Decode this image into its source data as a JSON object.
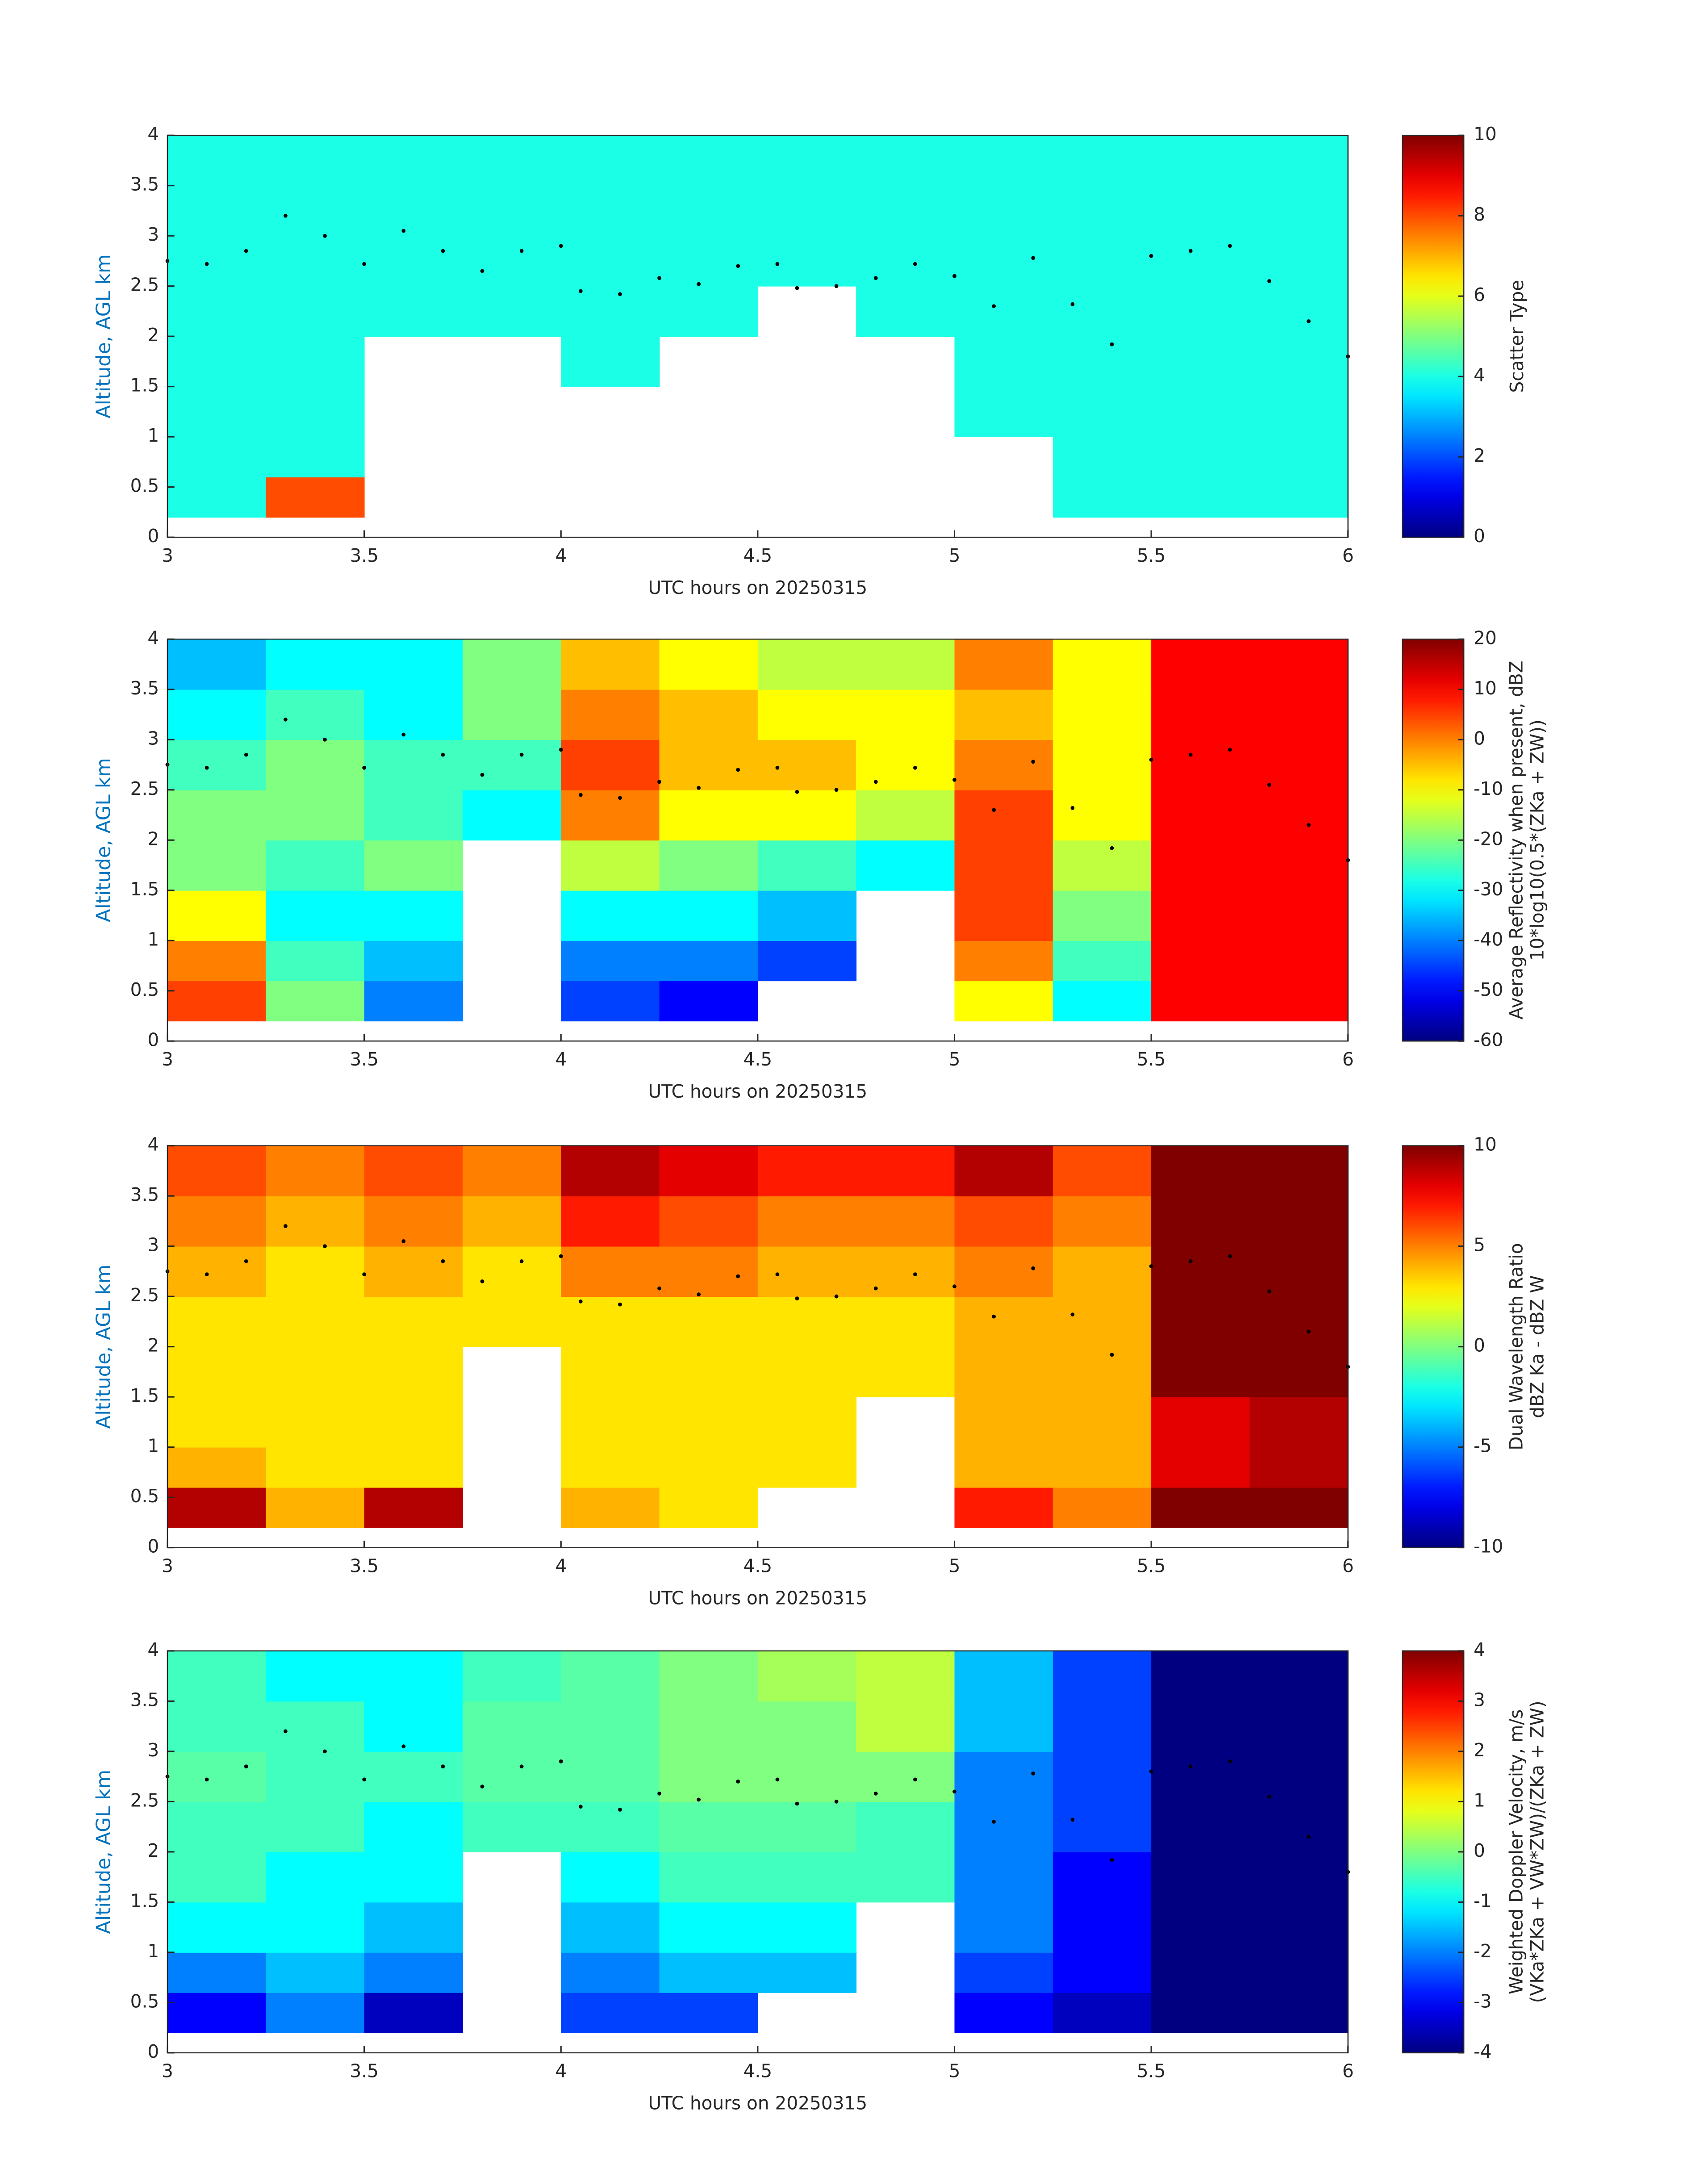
{
  "chart_data": [
    {
      "type": "heatmap",
      "xlabel": "UTC hours on 20250315",
      "ylabel": "Altitude, AGL km",
      "xlim": [
        3,
        6
      ],
      "xticks": [
        3,
        3.5,
        4,
        4.5,
        5,
        5.5,
        6
      ],
      "ylim": [
        0,
        4
      ],
      "yticks": [
        0,
        0.5,
        1,
        1.5,
        2,
        2.5,
        3,
        3.5,
        4
      ],
      "colormap": "jet",
      "clim": [
        0,
        10
      ],
      "cticks": [
        0,
        2,
        4,
        6,
        8,
        10
      ],
      "colorbar_label": [
        "Scatter Type"
      ],
      "xbins": [
        3,
        3.25,
        3.5,
        3.75,
        4,
        4.25,
        4.5,
        4.75,
        5,
        5.25,
        5.5,
        5.75,
        6
      ],
      "ybins": [
        0.2,
        0.6,
        1,
        1.5,
        2,
        2.5,
        3,
        3.5,
        4
      ],
      "z": [
        [
          4,
          8,
          null,
          null,
          null,
          null,
          null,
          null,
          null,
          4,
          4,
          4
        ],
        [
          4,
          4,
          null,
          null,
          null,
          null,
          null,
          null,
          null,
          4,
          4,
          4
        ],
        [
          4,
          4,
          null,
          null,
          null,
          null,
          null,
          null,
          4,
          4,
          4,
          4
        ],
        [
          4,
          4,
          null,
          null,
          4,
          null,
          null,
          null,
          4,
          4,
          4,
          4
        ],
        [
          4,
          4,
          4,
          4,
          4,
          4,
          null,
          4,
          4,
          4,
          4,
          4
        ],
        [
          4,
          4,
          4,
          4,
          4,
          4,
          4,
          4,
          4,
          4,
          4,
          4
        ],
        [
          4,
          4,
          4,
          4,
          4,
          4,
          4,
          4,
          4,
          4,
          4,
          4
        ],
        [
          4,
          4,
          4,
          4,
          4,
          4,
          4,
          4,
          4,
          4,
          4,
          4
        ]
      ],
      "overlay": {
        "color": "#000000",
        "x": [
          3,
          3.1,
          3.2,
          3.3,
          3.4,
          3.5,
          3.6,
          3.7,
          3.8,
          3.9,
          4,
          4.05,
          4.15,
          4.25,
          4.35,
          4.45,
          4.55,
          4.6,
          4.7,
          4.8,
          4.9,
          5,
          5.1,
          5.2,
          5.3,
          5.4,
          5.5,
          5.6,
          5.7,
          5.8,
          5.9,
          6
        ],
        "y": [
          2.75,
          2.72,
          2.85,
          3.2,
          3,
          2.72,
          3.05,
          2.85,
          2.65,
          2.85,
          2.9,
          2.45,
          2.42,
          2.58,
          2.52,
          2.7,
          2.72,
          2.48,
          2.5,
          2.58,
          2.72,
          2.6,
          2.3,
          2.78,
          2.32,
          1.92,
          2.8,
          2.85,
          2.9,
          2.55,
          2.15,
          1.8
        ]
      }
    },
    {
      "type": "heatmap",
      "xlabel": "UTC hours on 20250315",
      "ylabel": "Altitude, AGL km",
      "xlim": [
        3,
        6
      ],
      "xticks": [
        3,
        3.5,
        4,
        4.5,
        5,
        5.5,
        6
      ],
      "ylim": [
        0,
        4
      ],
      "yticks": [
        0,
        0.5,
        1,
        1.5,
        2,
        2.5,
        3,
        3.5,
        4
      ],
      "colormap": "jet",
      "clim": [
        -60,
        20
      ],
      "cticks": [
        -60,
        -50,
        -40,
        -30,
        -20,
        -10,
        0,
        10,
        20
      ],
      "colorbar_label": [
        "Average Reflectivity when present, dBZ",
        "10*log10(0.5*(ZKa + ZW))"
      ],
      "xbins": [
        3,
        3.25,
        3.5,
        3.75,
        4,
        4.25,
        4.5,
        4.75,
        5,
        5.25,
        5.5,
        5.75,
        6
      ],
      "ybins": [
        0.2,
        0.6,
        1,
        1.5,
        2,
        2.5,
        3,
        3.5,
        4
      ],
      "z": [
        [
          5,
          -20,
          -40,
          null,
          -45,
          -50,
          null,
          null,
          -10,
          -30,
          10,
          10
        ],
        [
          0,
          -25,
          -35,
          null,
          -40,
          -40,
          -45,
          null,
          0,
          -25,
          10,
          10
        ],
        [
          -10,
          -30,
          -30,
          null,
          -30,
          -30,
          -35,
          null,
          5,
          -20,
          10,
          10
        ],
        [
          -20,
          -25,
          -20,
          null,
          -15,
          -20,
          -25,
          -30,
          5,
          -15,
          10,
          10
        ],
        [
          -20,
          -20,
          -25,
          -30,
          0,
          -10,
          -10,
          -15,
          5,
          -10,
          10,
          10
        ],
        [
          -25,
          -20,
          -25,
          -25,
          5,
          -5,
          -5,
          -10,
          0,
          -10,
          10,
          10
        ],
        [
          -30,
          -25,
          -30,
          -20,
          0,
          -5,
          -10,
          -10,
          -5,
          -10,
          10,
          10
        ],
        [
          -35,
          -30,
          -30,
          -20,
          -5,
          -10,
          -15,
          -15,
          0,
          -10,
          10,
          10
        ]
      ],
      "overlay": {
        "color": "#000000",
        "x": [
          3,
          3.1,
          3.2,
          3.3,
          3.4,
          3.5,
          3.6,
          3.7,
          3.8,
          3.9,
          4,
          4.05,
          4.15,
          4.25,
          4.35,
          4.45,
          4.55,
          4.6,
          4.7,
          4.8,
          4.9,
          5,
          5.1,
          5.2,
          5.3,
          5.4,
          5.5,
          5.6,
          5.7,
          5.8,
          5.9,
          6
        ],
        "y": [
          2.75,
          2.72,
          2.85,
          3.2,
          3,
          2.72,
          3.05,
          2.85,
          2.65,
          2.85,
          2.9,
          2.45,
          2.42,
          2.58,
          2.52,
          2.7,
          2.72,
          2.48,
          2.5,
          2.58,
          2.72,
          2.6,
          2.3,
          2.78,
          2.32,
          1.92,
          2.8,
          2.85,
          2.9,
          2.55,
          2.15,
          1.8
        ]
      }
    },
    {
      "type": "heatmap",
      "xlabel": "UTC hours on 20250315",
      "ylabel": "Altitude, AGL km",
      "xlim": [
        3,
        6
      ],
      "xticks": [
        3,
        3.5,
        4,
        4.5,
        5,
        5.5,
        6
      ],
      "ylim": [
        0,
        4
      ],
      "yticks": [
        0,
        0.5,
        1,
        1.5,
        2,
        2.5,
        3,
        3.5,
        4
      ],
      "colormap": "jet",
      "clim": [
        -10,
        10
      ],
      "cticks": [
        -10,
        -5,
        0,
        5,
        10
      ],
      "colorbar_label": [
        "Dual Wavelength Ratio",
        "dBZ Ka - dBZ W"
      ],
      "xbins": [
        3,
        3.25,
        3.5,
        3.75,
        4,
        4.25,
        4.5,
        4.75,
        5,
        5.25,
        5.5,
        5.75,
        6
      ],
      "ybins": [
        0.2,
        0.6,
        1,
        1.5,
        2,
        2.5,
        3,
        3.5,
        4
      ],
      "z": [
        [
          9,
          4,
          9,
          null,
          4,
          3,
          null,
          null,
          7,
          5,
          10,
          10
        ],
        [
          4,
          3,
          3,
          null,
          3,
          3,
          3,
          null,
          4,
          4,
          8,
          9
        ],
        [
          3,
          3,
          3,
          null,
          3,
          3,
          3,
          null,
          4,
          4,
          8,
          9
        ],
        [
          3,
          3,
          3,
          null,
          3,
          3,
          3,
          3,
          4,
          4,
          10,
          10
        ],
        [
          3,
          3,
          3,
          3,
          3,
          3,
          3,
          3,
          4,
          4,
          10,
          10
        ],
        [
          4,
          3,
          4,
          3,
          5,
          5,
          4,
          4,
          5,
          4,
          10,
          10
        ],
        [
          5,
          4,
          5,
          4,
          7,
          6,
          5,
          5,
          6,
          5,
          10,
          10
        ],
        [
          6,
          5,
          6,
          5,
          9,
          8,
          7,
          7,
          9,
          6,
          10,
          10
        ]
      ],
      "overlay": {
        "color": "#000000",
        "x": [
          3,
          3.1,
          3.2,
          3.3,
          3.4,
          3.5,
          3.6,
          3.7,
          3.8,
          3.9,
          4,
          4.05,
          4.15,
          4.25,
          4.35,
          4.45,
          4.55,
          4.6,
          4.7,
          4.8,
          4.9,
          5,
          5.1,
          5.2,
          5.3,
          5.4,
          5.5,
          5.6,
          5.7,
          5.8,
          5.9,
          6
        ],
        "y": [
          2.75,
          2.72,
          2.85,
          3.2,
          3,
          2.72,
          3.05,
          2.85,
          2.65,
          2.85,
          2.9,
          2.45,
          2.42,
          2.58,
          2.52,
          2.7,
          2.72,
          2.48,
          2.5,
          2.58,
          2.72,
          2.6,
          2.3,
          2.78,
          2.32,
          1.92,
          2.8,
          2.85,
          2.9,
          2.55,
          2.15,
          1.8
        ]
      }
    },
    {
      "type": "heatmap",
      "xlabel": "UTC hours on 20250315",
      "ylabel": "Altitude, AGL km",
      "xlim": [
        3,
        6
      ],
      "xticks": [
        3,
        3.5,
        4,
        4.5,
        5,
        5.5,
        6
      ],
      "ylim": [
        0,
        4
      ],
      "yticks": [
        0,
        0.5,
        1,
        1.5,
        2,
        2.5,
        3,
        3.5,
        4
      ],
      "colormap": "jet",
      "clim": [
        -4,
        4
      ],
      "cticks": [
        -4,
        -3,
        -2,
        -1,
        0,
        1,
        2,
        3,
        4
      ],
      "colorbar_label": [
        "Weighted Doppler Velocity, m/s",
        "(VKa*ZKa + VW*ZW)/(ZKa + ZW)"
      ],
      "xbins": [
        3,
        3.25,
        3.5,
        3.75,
        4,
        4.25,
        4.5,
        4.75,
        5,
        5.25,
        5.5,
        5.75,
        6
      ],
      "ybins": [
        0.2,
        0.6,
        1,
        1.5,
        2,
        2.5,
        3,
        3.5,
        4
      ],
      "z": [
        [
          -3,
          -2,
          -3.5,
          null,
          -2.5,
          -2.5,
          null,
          null,
          -3,
          -3.5,
          -4,
          -4
        ],
        [
          -2,
          -1.5,
          -2,
          null,
          -2,
          -1.5,
          -1.5,
          null,
          -2.5,
          -3,
          -4,
          -4
        ],
        [
          -1,
          -1,
          -1.5,
          null,
          -1.5,
          -1,
          -1,
          null,
          -2,
          -3,
          -4,
          -4
        ],
        [
          -0.5,
          -1,
          -1,
          null,
          -1,
          -0.5,
          -0.5,
          -0.5,
          -2,
          -3,
          -4,
          -4
        ],
        [
          -0.5,
          -0.5,
          -1,
          -0.5,
          -0.5,
          -0.3,
          -0.3,
          -0.5,
          -2,
          -2.5,
          -4,
          -4
        ],
        [
          -0.3,
          -0.5,
          -0.5,
          -0.3,
          -0.3,
          0,
          0,
          0,
          -2,
          -2.5,
          -4,
          -4
        ],
        [
          -0.5,
          -0.5,
          -1,
          -0.3,
          -0.3,
          0,
          0,
          0.5,
          -1.5,
          -2.5,
          -4,
          -4
        ],
        [
          -0.5,
          -1,
          -1,
          -0.5,
          -0.3,
          0,
          0.3,
          0.5,
          -1.5,
          -2.5,
          -4,
          -4
        ]
      ],
      "overlay": {
        "color": "#000000",
        "x": [
          3,
          3.1,
          3.2,
          3.3,
          3.4,
          3.5,
          3.6,
          3.7,
          3.8,
          3.9,
          4,
          4.05,
          4.15,
          4.25,
          4.35,
          4.45,
          4.55,
          4.6,
          4.7,
          4.8,
          4.9,
          5,
          5.1,
          5.2,
          5.3,
          5.4,
          5.5,
          5.6,
          5.7,
          5.8,
          5.9,
          6
        ],
        "y": [
          2.75,
          2.72,
          2.85,
          3.2,
          3,
          2.72,
          3.05,
          2.85,
          2.65,
          2.85,
          2.9,
          2.45,
          2.42,
          2.58,
          2.52,
          2.7,
          2.72,
          2.48,
          2.5,
          2.58,
          2.72,
          2.6,
          2.3,
          2.78,
          2.32,
          1.92,
          2.8,
          2.85,
          2.9,
          2.55,
          2.15,
          1.8
        ]
      }
    }
  ]
}
